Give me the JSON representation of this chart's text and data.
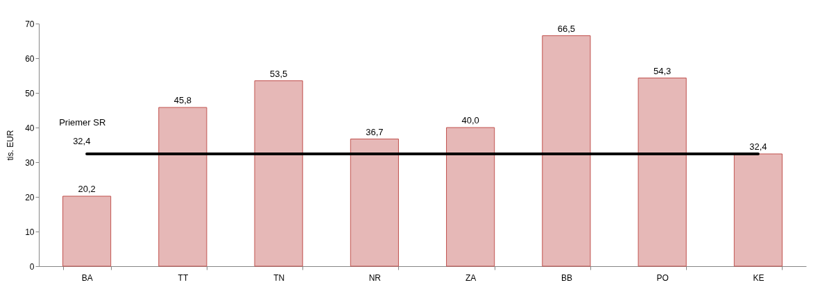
{
  "chart_data": {
    "type": "bar",
    "categories": [
      "BA",
      "TT",
      "TN",
      "NR",
      "ZA",
      "BB",
      "PO",
      "KE"
    ],
    "values": [
      20.2,
      45.8,
      53.5,
      36.7,
      40.0,
      66.5,
      54.3,
      32.4
    ],
    "value_labels": [
      "20,2",
      "45,8",
      "53,5",
      "36,7",
      "40,0",
      "66,5",
      "54,3",
      "32,4"
    ],
    "color": "#e6b8b7",
    "ylabel": "tis. EUR",
    "ylim": [
      0,
      70
    ],
    "yticks": [
      0,
      10,
      20,
      30,
      40,
      50,
      60,
      70
    ],
    "grid": false,
    "ref_lines": [
      {
        "axis": "y",
        "value": 32.4,
        "label": "Priemer SR",
        "color": "#000000"
      }
    ],
    "annotations": [
      {
        "text": "32,4",
        "x": "BA",
        "y": 32.4
      }
    ]
  }
}
